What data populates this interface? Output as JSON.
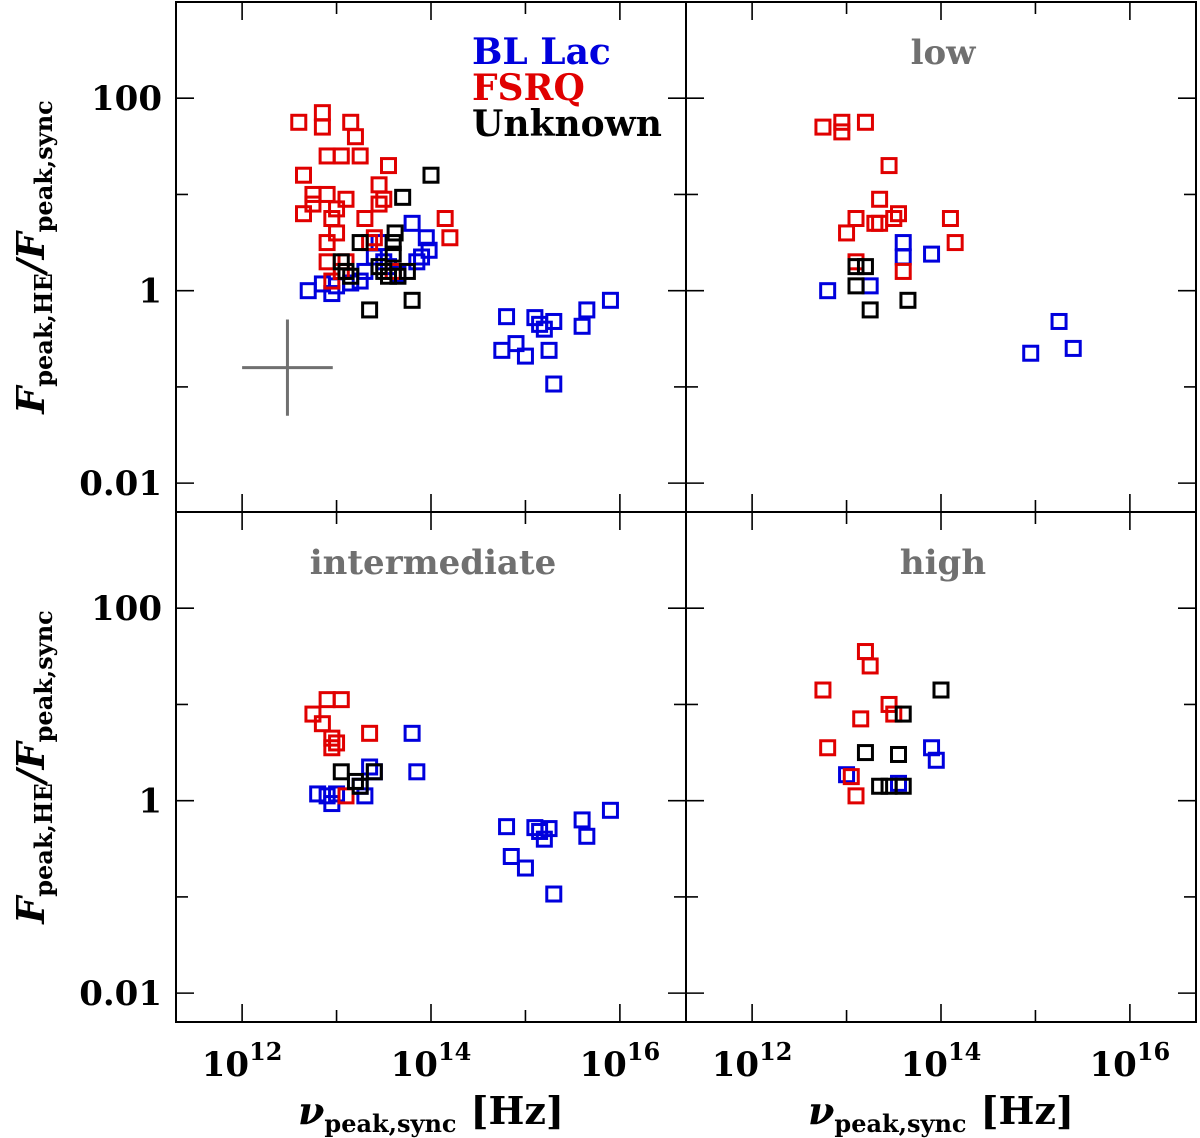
{
  "chart_data": {
    "type": "scatter",
    "x_axis": {
      "label_main": "ν",
      "label_sub": "peak,sync",
      "unit": "[Hz]",
      "scale": "log",
      "range_log10": [
        11.3,
        16.7
      ],
      "tick_exponents": [
        12,
        14,
        16
      ],
      "tick_base": "10"
    },
    "y_axis": {
      "label_f1": "F",
      "label_sub1": "peak,HE",
      "label_slash": "/",
      "label_f2": "F",
      "label_sub2": "peak,sync",
      "scale": "log",
      "range_log10": [
        -2.3,
        3.0
      ],
      "tick_labels": [
        "100",
        "1",
        "0.01"
      ],
      "tick_values_log10": [
        2,
        0,
        -2
      ]
    },
    "legend": {
      "position": "top-right of first panel",
      "entries": [
        {
          "label": "BL Lac",
          "color": "#0000dd"
        },
        {
          "label": "FSRQ",
          "color": "#e00000"
        },
        {
          "label": "Unknown",
          "color": "#000000"
        }
      ]
    },
    "colors": {
      "BL Lac": "#0000dd",
      "FSRQ": "#e00000",
      "Unknown": "#000000",
      "title": "#707070",
      "errorbar": "#707070"
    },
    "typical_errorbar": {
      "x_log10": 12.48,
      "y_log10": -0.8,
      "x_halfwidth_log10": 0.48,
      "y_halfwidth_log10": 0.5
    },
    "panels": [
      {
        "title": "",
        "series": [
          {
            "name": "BL Lac",
            "points": [
              [
                12.7,
                0.0
              ],
              [
                12.85,
                0.07
              ],
              [
                12.95,
                -0.03
              ],
              [
                13.0,
                0.05
              ],
              [
                13.15,
                0.08
              ],
              [
                13.25,
                0.1
              ],
              [
                13.3,
                0.2
              ],
              [
                13.4,
                0.35
              ],
              [
                13.45,
                0.5
              ],
              [
                13.5,
                0.3
              ],
              [
                13.55,
                0.25
              ],
              [
                13.65,
                0.17
              ],
              [
                13.85,
                0.3
              ],
              [
                13.9,
                0.35
              ],
              [
                13.8,
                0.7
              ],
              [
                13.95,
                0.55
              ],
              [
                13.98,
                0.42
              ],
              [
                14.8,
                -0.27
              ],
              [
                14.75,
                -0.62
              ],
              [
                14.9,
                -0.55
              ],
              [
                15.0,
                -0.68
              ],
              [
                15.1,
                -0.28
              ],
              [
                15.15,
                -0.35
              ],
              [
                15.2,
                -0.4
              ],
              [
                15.25,
                -0.62
              ],
              [
                15.3,
                -0.97
              ],
              [
                15.3,
                -0.32
              ],
              [
                15.6,
                -0.37
              ],
              [
                15.65,
                -0.2
              ],
              [
                15.9,
                -0.1
              ]
            ]
          },
          {
            "name": "FSRQ",
            "points": [
              [
                12.6,
                1.75
              ],
              [
                12.65,
                1.2
              ],
              [
                12.65,
                0.8
              ],
              [
                12.75,
                1.0
              ],
              [
                12.75,
                0.9
              ],
              [
                12.85,
                1.85
              ],
              [
                12.85,
                1.7
              ],
              [
                12.9,
                1.4
              ],
              [
                12.9,
                1.0
              ],
              [
                12.95,
                0.75
              ],
              [
                12.9,
                0.5
              ],
              [
                12.9,
                0.3
              ],
              [
                12.95,
                0.1
              ],
              [
                13.0,
                0.85
              ],
              [
                13.0,
                0.6
              ],
              [
                13.05,
                1.4
              ],
              [
                13.05,
                0.2
              ],
              [
                13.1,
                0.95
              ],
              [
                13.1,
                0.3
              ],
              [
                13.15,
                1.75
              ],
              [
                13.2,
                1.6
              ],
              [
                13.25,
                1.4
              ],
              [
                13.3,
                0.75
              ],
              [
                13.35,
                0.5
              ],
              [
                13.4,
                0.55
              ],
              [
                13.45,
                1.1
              ],
              [
                13.45,
                0.9
              ],
              [
                13.5,
                0.95
              ],
              [
                13.55,
                1.3
              ],
              [
                13.6,
                0.2
              ],
              [
                14.15,
                0.75
              ],
              [
                14.2,
                0.55
              ]
            ]
          },
          {
            "name": "Unknown",
            "points": [
              [
                13.05,
                0.3
              ],
              [
                13.1,
                0.2
              ],
              [
                13.15,
                0.15
              ],
              [
                13.25,
                0.5
              ],
              [
                13.35,
                -0.2
              ],
              [
                13.45,
                0.25
              ],
              [
                13.5,
                0.2
              ],
              [
                13.55,
                0.15
              ],
              [
                13.62,
                0.6
              ],
              [
                13.6,
                0.5
              ],
              [
                13.6,
                0.38
              ],
              [
                13.65,
                0.15
              ],
              [
                13.7,
                0.97
              ],
              [
                13.75,
                0.2
              ],
              [
                13.8,
                -0.1
              ],
              [
                14.0,
                1.2
              ]
            ]
          }
        ]
      },
      {
        "title": "low",
        "series": [
          {
            "name": "BL Lac",
            "points": [
              [
                12.8,
                0.0
              ],
              [
                13.25,
                0.05
              ],
              [
                13.6,
                0.5
              ],
              [
                13.6,
                0.35
              ],
              [
                13.9,
                0.38
              ],
              [
                14.95,
                -0.65
              ],
              [
                15.25,
                -0.32
              ],
              [
                15.4,
                -0.6
              ]
            ]
          },
          {
            "name": "FSRQ",
            "points": [
              [
                12.75,
                1.7
              ],
              [
                12.95,
                1.75
              ],
              [
                12.95,
                1.65
              ],
              [
                13.2,
                1.75
              ],
              [
                13.45,
                1.3
              ],
              [
                13.35,
                0.95
              ],
              [
                13.0,
                0.6
              ],
              [
                13.1,
                0.3
              ],
              [
                13.1,
                0.75
              ],
              [
                13.3,
                0.7
              ],
              [
                13.35,
                0.7
              ],
              [
                13.5,
                0.75
              ],
              [
                13.55,
                0.8
              ],
              [
                13.6,
                0.2
              ],
              [
                14.1,
                0.75
              ],
              [
                14.15,
                0.5
              ]
            ]
          },
          {
            "name": "Unknown",
            "points": [
              [
                13.1,
                0.25
              ],
              [
                13.2,
                0.25
              ],
              [
                13.1,
                0.05
              ],
              [
                13.25,
                -0.2
              ],
              [
                13.65,
                -0.1
              ]
            ]
          }
        ]
      },
      {
        "title": "intermediate",
        "series": [
          {
            "name": "BL Lac",
            "points": [
              [
                12.8,
                0.07
              ],
              [
                12.9,
                0.05
              ],
              [
                12.95,
                -0.03
              ],
              [
                13.0,
                0.07
              ],
              [
                13.25,
                0.15
              ],
              [
                13.3,
                0.05
              ],
              [
                13.35,
                0.35
              ],
              [
                13.4,
                0.3
              ],
              [
                13.8,
                0.7
              ],
              [
                13.85,
                0.3
              ],
              [
                14.8,
                -0.27
              ],
              [
                14.85,
                -0.58
              ],
              [
                15.0,
                -0.7
              ],
              [
                15.1,
                -0.28
              ],
              [
                15.15,
                -0.32
              ],
              [
                15.2,
                -0.4
              ],
              [
                15.25,
                -0.29
              ],
              [
                15.3,
                -0.97
              ],
              [
                15.6,
                -0.2
              ],
              [
                15.65,
                -0.37
              ],
              [
                15.9,
                -0.1
              ]
            ]
          },
          {
            "name": "FSRQ",
            "points": [
              [
                12.75,
                0.9
              ],
              [
                12.85,
                0.8
              ],
              [
                12.9,
                1.05
              ],
              [
                12.95,
                0.55
              ],
              [
                12.95,
                0.65
              ],
              [
                13.0,
                0.6
              ],
              [
                13.05,
                1.05
              ],
              [
                13.1,
                0.05
              ],
              [
                13.35,
                0.7
              ]
            ]
          },
          {
            "name": "Unknown",
            "points": [
              [
                13.05,
                0.3
              ],
              [
                13.2,
                0.2
              ],
              [
                13.25,
                0.15
              ],
              [
                13.4,
                0.3
              ]
            ]
          }
        ]
      },
      {
        "title": "high",
        "series": [
          {
            "name": "BL Lac",
            "points": [
              [
                13.0,
                0.27
              ],
              [
                13.55,
                0.18
              ],
              [
                13.9,
                0.55
              ],
              [
                13.95,
                0.42
              ]
            ]
          },
          {
            "name": "FSRQ",
            "points": [
              [
                12.75,
                1.15
              ],
              [
                12.8,
                0.55
              ],
              [
                13.05,
                0.25
              ],
              [
                13.1,
                0.05
              ],
              [
                13.15,
                0.85
              ],
              [
                13.2,
                1.55
              ],
              [
                13.25,
                1.4
              ],
              [
                13.45,
                1.0
              ],
              [
                13.5,
                0.9
              ]
            ]
          },
          {
            "name": "Unknown",
            "points": [
              [
                13.2,
                0.5
              ],
              [
                13.35,
                0.15
              ],
              [
                13.45,
                0.15
              ],
              [
                13.55,
                0.48
              ],
              [
                13.6,
                0.15
              ],
              [
                13.6,
                0.9
              ],
              [
                14.0,
                1.15
              ]
            ]
          }
        ]
      }
    ]
  }
}
